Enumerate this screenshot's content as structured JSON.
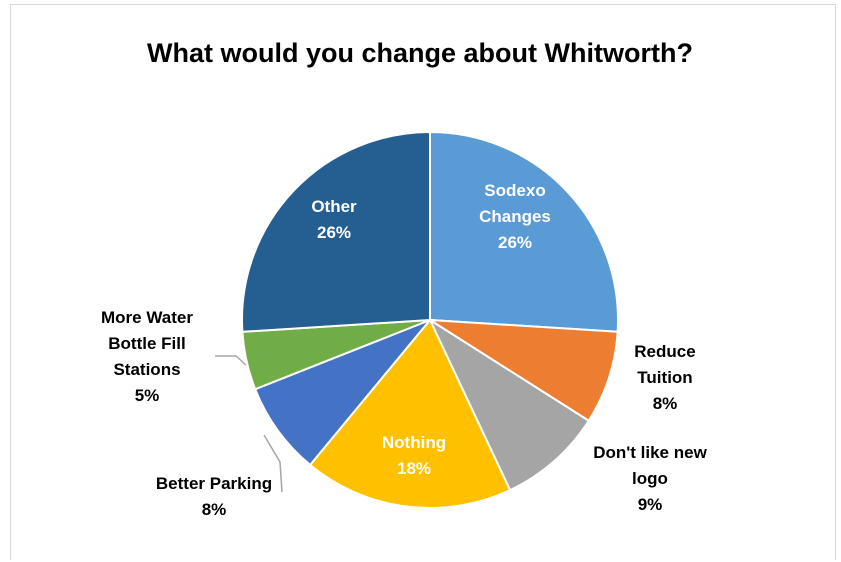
{
  "chart_data": {
    "type": "pie",
    "title": "What would you change about Whitworth?",
    "slices": [
      {
        "label": [
          "Sodexo",
          "Changes"
        ],
        "value": 26,
        "value_label": "26%",
        "color": "#5b9bd5",
        "label_color": "#ffffff"
      },
      {
        "label": [
          "Reduce",
          "Tuition"
        ],
        "value": 8,
        "value_label": "8%",
        "color": "#ed7d31",
        "label_color": "#000000"
      },
      {
        "label": [
          "Don't like new",
          "logo"
        ],
        "value": 9,
        "value_label": "9%",
        "color": "#a5a5a5",
        "label_color": "#000000"
      },
      {
        "label": [
          "Nothing"
        ],
        "value": 18,
        "value_label": "18%",
        "color": "#ffc000",
        "label_color": "#ffffff"
      },
      {
        "label": [
          "Better Parking"
        ],
        "value": 8,
        "value_label": "8%",
        "color": "#4472c4",
        "label_color": "#000000"
      },
      {
        "label": [
          "More Water",
          "Bottle Fill",
          "Stations"
        ],
        "value": 5,
        "value_label": "5%",
        "color": "#70ad47",
        "label_color": "#000000"
      },
      {
        "label": [
          "Other"
        ],
        "value": 26,
        "value_label": "26%",
        "color": "#255e91",
        "label_color": "#ffffff"
      }
    ]
  }
}
